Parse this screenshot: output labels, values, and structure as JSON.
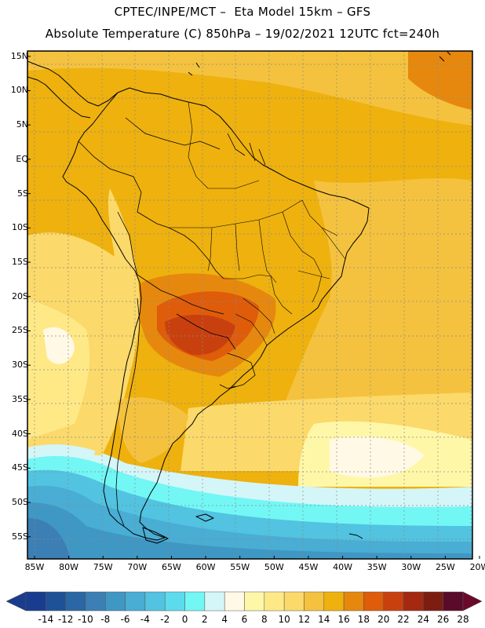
{
  "header": {
    "line1": "CPTEC/INPE/MCT –  Eta Model 15km – GFS",
    "line2": "Absolute Temperature (C) 850hPa – 19/02/2021 12UTC fct=240h"
  },
  "map": {
    "region": "South America",
    "variable": "Absolute Temperature",
    "unit": "C",
    "level": "850hPa",
    "lat_range": [
      -58,
      16
    ],
    "lon_range": [
      -85,
      -20
    ],
    "lat_labels": [
      "15N",
      "10N",
      "5N",
      "EQ",
      "5S",
      "10S",
      "15S",
      "20S",
      "25S",
      "30S",
      "35S",
      "40S",
      "45S",
      "50S",
      "55S"
    ],
    "lat_values": [
      15,
      10,
      5,
      0,
      -5,
      -10,
      -15,
      -20,
      -25,
      -30,
      -35,
      -40,
      -45,
      -50,
      -55
    ],
    "lon_labels": [
      "85W",
      "80W",
      "75W",
      "70W",
      "65W",
      "60W",
      "55W",
      "50W",
      "45W",
      "40W",
      "35W",
      "30W",
      "25W",
      "20W"
    ],
    "lon_values": [
      -85,
      -80,
      -75,
      -70,
      -65,
      -60,
      -55,
      -50,
      -45,
      -40,
      -35,
      -30,
      -25,
      -20
    ]
  },
  "colorbar": {
    "labels": [
      "-14",
      "-12",
      "-10",
      "-8",
      "-6",
      "-4",
      "-2",
      "0",
      "2",
      "4",
      "6",
      "8",
      "10",
      "12",
      "14",
      "16",
      "18",
      "20",
      "22",
      "24",
      "26",
      "28"
    ],
    "colors": [
      "#1a3c8e",
      "#1f5196",
      "#2a67a4",
      "#3b7fb5",
      "#3f97c4",
      "#49add4",
      "#52c3e0",
      "#5cdbec",
      "#72f7f5",
      "#d4f6f8",
      "#fff9e6",
      "#fff7a8",
      "#ffe987",
      "#fbd96a",
      "#f4c23e",
      "#eeb10e",
      "#e6880e",
      "#de5c0a",
      "#c9400f",
      "#a52811",
      "#7c1d12",
      "#5a0b2a"
    ],
    "under_color": "#1a3c8e",
    "over_color": "#6a0a2a"
  }
}
